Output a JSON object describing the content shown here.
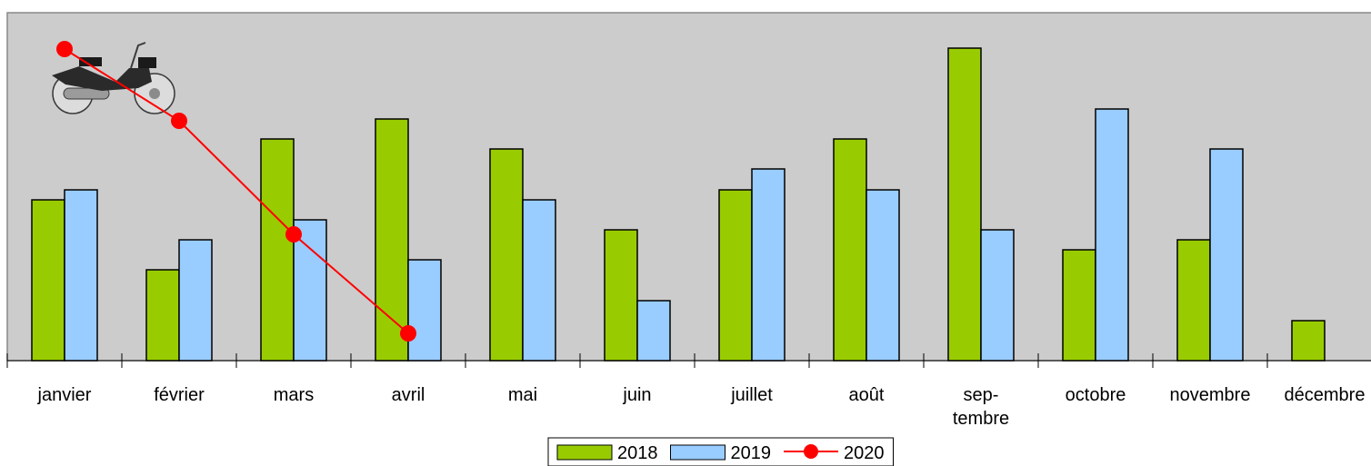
{
  "chart_data": {
    "type": "bar",
    "categories": [
      "janvier",
      "février",
      "mars",
      "avril",
      "mai",
      "juin",
      "juillet",
      "août",
      "sep-\ntembre",
      "octobre",
      "novembre",
      "décembre"
    ],
    "series": [
      {
        "name": "2018",
        "type": "bar",
        "color": "#99cc00",
        "values": [
          17.7,
          10,
          24.4,
          26.6,
          23.3,
          14.4,
          18.8,
          24.4,
          34.4,
          12.2,
          13.3,
          4.4
        ]
      },
      {
        "name": "2019",
        "type": "bar",
        "color": "#99ccff",
        "values": [
          18.8,
          13.3,
          15.5,
          11.1,
          17.7,
          6.6,
          21.1,
          18.8,
          14.4,
          27.7,
          23.3,
          null
        ]
      },
      {
        "name": "2020",
        "type": "line",
        "color": "#ff0000",
        "values": [
          34.3,
          26.4,
          13.9,
          3,
          null,
          null,
          null,
          null,
          null,
          null,
          null,
          null
        ]
      }
    ],
    "ylim": [
      0,
      38.3
    ],
    "legend": "bottom"
  }
}
